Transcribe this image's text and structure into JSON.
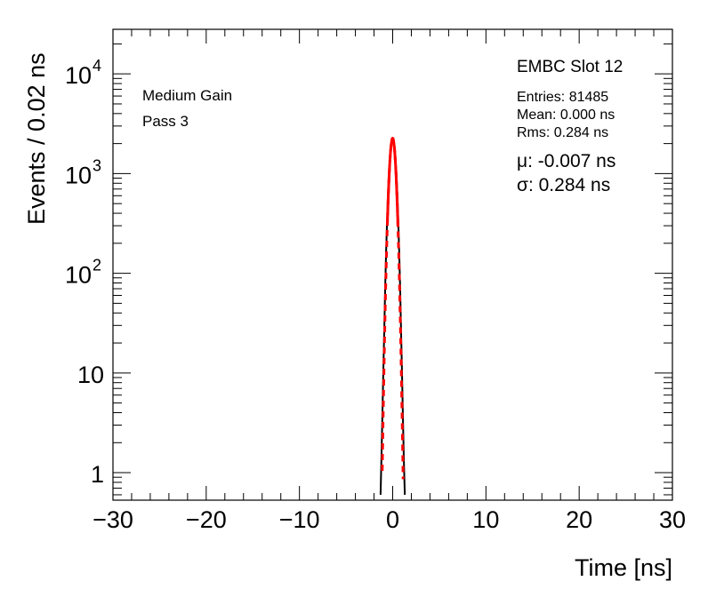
{
  "chart_data": {
    "type": "line",
    "xlabel": "Time [ns]",
    "ylabel": "Events / 0.02 ns",
    "xlim": [
      -30,
      30
    ],
    "ylim": [
      0.53,
      28000
    ],
    "yscale": "log",
    "x_ticks": [
      -30,
      -20,
      -10,
      0,
      10,
      20,
      30
    ],
    "x_tick_labels": [
      "−30",
      "−20",
      "−10",
      "0",
      "10",
      "20",
      "30"
    ],
    "y_ticks": [
      {
        "value": 1,
        "base": "1",
        "exp": ""
      },
      {
        "value": 10,
        "base": "10",
        "exp": ""
      },
      {
        "value": 100,
        "base": "10",
        "exp": "2"
      },
      {
        "value": 1000,
        "base": "10",
        "exp": "3"
      },
      {
        "value": 10000,
        "base": "10",
        "exp": "4"
      }
    ],
    "grid": false,
    "series": [
      {
        "kind": "histogram",
        "color": "#000000",
        "x": [
          -1.3,
          -1.2,
          -1.1,
          -1.0,
          -0.9,
          -0.8,
          -0.7,
          -0.6,
          -0.5,
          -0.4,
          -0.3,
          -0.2,
          -0.1,
          0.0,
          0.1,
          0.2,
          0.3,
          0.4,
          0.5,
          0.6,
          0.7,
          0.8,
          0.9,
          1.0,
          1.1,
          1.2,
          1.3
        ],
        "y": [
          0.6,
          1.5,
          4,
          11,
          28,
          75,
          170,
          340,
          620,
          1000,
          1450,
          1850,
          2100,
          2150,
          2080,
          1800,
          1400,
          980,
          600,
          330,
          160,
          70,
          26,
          10,
          3.5,
          1.3,
          0.6
        ]
      },
      {
        "kind": "gaussian-fit",
        "color": "#ff0000",
        "dashed_below_y": 300,
        "amplitude": 2260,
        "mean": -0.007,
        "sigma": 0.284
      }
    ],
    "annotations": {
      "label_left_1": "Medium Gain",
      "label_left_2": "Pass 3",
      "title_right": "EMBC Slot 12",
      "entries": "Entries: 81485",
      "mean": "Mean: 0.000 ns",
      "rms": "Rms: 0.284 ns",
      "mu": "μ: -0.007 ns",
      "sigma": "σ: 0.284 ns"
    }
  }
}
